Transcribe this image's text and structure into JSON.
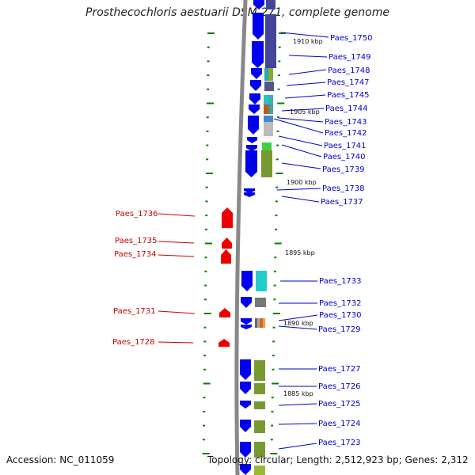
{
  "title": "Prosthecochloris aestuarii DSM 271, complete genome",
  "accession": "Accession: NC_011059",
  "topology": "Topology: circular; Length: 2,512,923 bp; Genes: 2,312",
  "colors": {
    "forward": "#0000ee",
    "reverse": "#ee0000",
    "backbone": "#888888",
    "tick": "#008000"
  },
  "kbp_labels": [
    "1910 kbp",
    "1905 kbp",
    "1900 kbp",
    "1895 kbp",
    "1890 kbp",
    "1885 kbp"
  ],
  "right_genes": [
    "Paes_1750",
    "Paes_1749",
    "Paes_1748",
    "Paes_1747",
    "Paes_1745",
    "Paes_1744",
    "Paes_1743",
    "Paes_1742",
    "Paes_1741",
    "Paes_1740",
    "Paes_1739",
    "Paes_1738",
    "Paes_1737",
    "Paes_1733",
    "Paes_1732",
    "Paes_1730",
    "Paes_1729",
    "Paes_1727",
    "Paes_1726",
    "Paes_1725",
    "Paes_1724",
    "Paes_1723"
  ],
  "left_genes": [
    "Paes_1736",
    "Paes_1735",
    "Paes_1734",
    "Paes_1731",
    "Paes_1728"
  ]
}
